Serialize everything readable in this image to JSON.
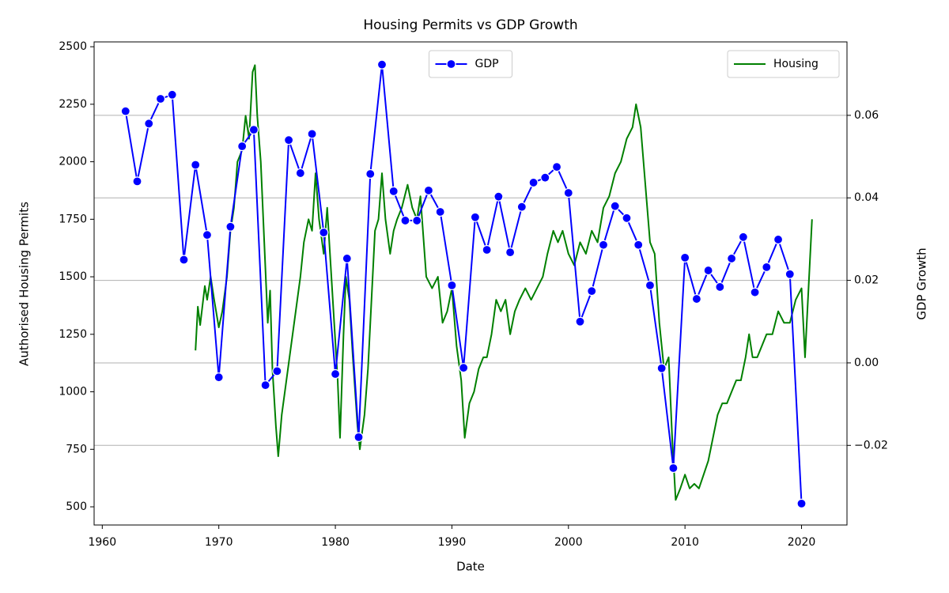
{
  "chart_data": {
    "type": "line",
    "title": "Housing Permits vs GDP Growth",
    "x_label": "Date",
    "y_label": "Authorised Housing Permits",
    "y2_label": "GDP Growth",
    "xlim": [
      1959.3,
      2023.9
    ],
    "xticks": [
      1960,
      1970,
      1980,
      1990,
      2000,
      2010,
      2020
    ],
    "ylim": [
      421,
      2521
    ],
    "yticks": [
      500,
      750,
      1000,
      1250,
      1500,
      1750,
      2000,
      2250,
      2500
    ],
    "y2lim": [
      -0.0393,
      0.0778
    ],
    "y2ticks": [
      {
        "value": -0.02,
        "label": "−0.02"
      },
      {
        "value": 0,
        "label": "0.00"
      },
      0.02,
      0.04,
      0.06
    ],
    "grid": "y2",
    "series": [
      {
        "name": "Housing",
        "color": "green",
        "axis": "y",
        "marker": "none",
        "legend": "upper right",
        "x": [
          1968.0,
          1968.2,
          1968.4,
          1968.8,
          1969.0,
          1969.3,
          1969.6,
          1970.0,
          1970.3,
          1970.7,
          1971.0,
          1971.3,
          1971.6,
          1972.0,
          1972.3,
          1972.6,
          1972.9,
          1973.1,
          1973.3,
          1973.6,
          1973.9,
          1974.2,
          1974.4,
          1974.6,
          1974.9,
          1975.1,
          1975.4,
          1975.8,
          1976.2,
          1976.6,
          1977.0,
          1977.3,
          1977.7,
          1978.0,
          1978.3,
          1978.6,
          1979.0,
          1979.3,
          1979.6,
          1979.9,
          1980.2,
          1980.4,
          1980.7,
          1980.9,
          1981.2,
          1981.5,
          1981.9,
          1982.1,
          1982.5,
          1982.8,
          1983.1,
          1983.4,
          1983.7,
          1984.0,
          1984.3,
          1984.7,
          1985.0,
          1985.3,
          1985.7,
          1986.2,
          1986.6,
          1987.0,
          1987.3,
          1987.8,
          1988.3,
          1988.8,
          1989.2,
          1989.6,
          1990.0,
          1990.4,
          1990.8,
          1991.1,
          1991.5,
          1991.9,
          1992.3,
          1992.7,
          1993.0,
          1993.4,
          1993.8,
          1994.2,
          1994.6,
          1995.0,
          1995.4,
          1995.8,
          1996.3,
          1996.8,
          1997.3,
          1997.8,
          1998.2,
          1998.7,
          1999.1,
          1999.5,
          2000.0,
          2000.5,
          2001.0,
          2001.5,
          2002.0,
          2002.5,
          2003.0,
          2003.5,
          2004.0,
          2004.5,
          2005.0,
          2005.5,
          2005.8,
          2006.2,
          2006.6,
          2007.0,
          2007.4,
          2007.8,
          2008.2,
          2008.6,
          2008.9,
          2009.2,
          2009.6,
          2010.0,
          2010.4,
          2010.8,
          2011.2,
          2011.6,
          2012.0,
          2012.4,
          2012.8,
          2013.2,
          2013.6,
          2014.0,
          2014.4,
          2014.8,
          2015.2,
          2015.5,
          2015.8,
          2016.2,
          2016.6,
          2017.0,
          2017.5,
          2018.0,
          2018.5,
          2019.0,
          2019.5,
          2020.0,
          2020.3,
          2020.6,
          2020.9
        ],
        "values": [
          1180,
          1370,
          1290,
          1460,
          1400,
          1500,
          1400,
          1280,
          1350,
          1500,
          1700,
          1800,
          2000,
          2050,
          2200,
          2100,
          2390,
          2420,
          2200,
          2000,
          1650,
          1300,
          1440,
          1100,
          850,
          720,
          900,
          1050,
          1200,
          1350,
          1500,
          1650,
          1750,
          1700,
          1950,
          1750,
          1600,
          1800,
          1550,
          1300,
          1050,
          800,
          1250,
          1500,
          1400,
          1150,
          850,
          750,
          900,
          1100,
          1400,
          1700,
          1750,
          1950,
          1750,
          1600,
          1700,
          1750,
          1800,
          1900,
          1800,
          1750,
          1850,
          1500,
          1450,
          1500,
          1300,
          1350,
          1450,
          1200,
          1050,
          800,
          950,
          1000,
          1100,
          1150,
          1150,
          1250,
          1400,
          1350,
          1400,
          1250,
          1350,
          1400,
          1450,
          1400,
          1450,
          1500,
          1600,
          1700,
          1650,
          1700,
          1600,
          1550,
          1650,
          1600,
          1700,
          1650,
          1800,
          1850,
          1950,
          2000,
          2100,
          2150,
          2250,
          2150,
          1900,
          1650,
          1600,
          1300,
          1100,
          1150,
          800,
          530,
          580,
          640,
          580,
          600,
          580,
          640,
          700,
          800,
          900,
          950,
          950,
          1000,
          1050,
          1050,
          1150,
          1250,
          1150,
          1150,
          1200,
          1250,
          1250,
          1350,
          1300,
          1300,
          1400,
          1450,
          1150,
          1450,
          1750
        ]
      },
      {
        "name": "GDP",
        "color": "blue",
        "axis": "y2",
        "marker": "o",
        "legend": "upper center",
        "x": [
          1962,
          1963,
          1964,
          1965,
          1966,
          1967,
          1968,
          1969,
          1970,
          1971,
          1972,
          1973,
          1974,
          1975,
          1976,
          1977,
          1978,
          1979,
          1980,
          1981,
          1982,
          1983,
          1984,
          1985,
          1986,
          1987,
          1988,
          1989,
          1990,
          1991,
          1992,
          1993,
          1994,
          1995,
          1996,
          1997,
          1998,
          1999,
          2000,
          2001,
          2002,
          2003,
          2004,
          2005,
          2006,
          2007,
          2008,
          2009,
          2010,
          2011,
          2012,
          2013,
          2014,
          2015,
          2016,
          2017,
          2018,
          2019,
          2020
        ],
        "values": [
          0.061,
          0.044,
          0.058,
          0.064,
          0.065,
          0.025,
          0.048,
          0.031,
          -0.0035,
          0.033,
          0.0525,
          0.0565,
          -0.0054,
          -0.002,
          0.054,
          0.046,
          0.0555,
          0.0316,
          -0.0027,
          0.0253,
          -0.018,
          0.0458,
          0.0723,
          0.0416,
          0.0345,
          0.0345,
          0.0418,
          0.0366,
          0.0188,
          -0.0012,
          0.0353,
          0.0274,
          0.0403,
          0.0268,
          0.0378,
          0.0437,
          0.0449,
          0.0475,
          0.0412,
          0.01,
          0.0174,
          0.0286,
          0.038,
          0.0351,
          0.0286,
          0.0188,
          -0.0013,
          -0.0255,
          0.0255,
          0.0155,
          0.0224,
          0.0184,
          0.0253,
          0.0305,
          0.0171,
          0.0232,
          0.0299,
          0.0215,
          -0.0341
        ]
      }
    ]
  }
}
